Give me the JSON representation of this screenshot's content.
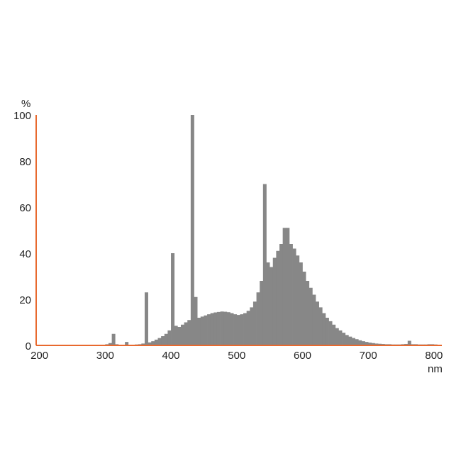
{
  "chart_data": {
    "type": "bar",
    "ylabel": "%",
    "xlabel": "nm",
    "x_ticks": [
      "200",
      "300",
      "400",
      "500",
      "600",
      "700",
      "800"
    ],
    "y_ticks": [
      "0",
      "20",
      "40",
      "60",
      "80",
      "100"
    ],
    "xlim": [
      195,
      812
    ],
    "ylim": [
      0,
      100
    ],
    "grid": false,
    "bin_width_nm": 5,
    "bar_color": "#878787",
    "axis_color": "#e8692e",
    "bins": [
      [
        300,
        0.5
      ],
      [
        305,
        1
      ],
      [
        310,
        5
      ],
      [
        315,
        0.5
      ],
      [
        320,
        0.3
      ],
      [
        325,
        0.3
      ],
      [
        330,
        1.5
      ],
      [
        335,
        0.3
      ],
      [
        340,
        0.3
      ],
      [
        345,
        0.4
      ],
      [
        350,
        0.5
      ],
      [
        355,
        0.8
      ],
      [
        360,
        23
      ],
      [
        365,
        1.3
      ],
      [
        370,
        1.8
      ],
      [
        375,
        2.5
      ],
      [
        380,
        3.2
      ],
      [
        385,
        4
      ],
      [
        390,
        5
      ],
      [
        395,
        6.5
      ],
      [
        400,
        40
      ],
      [
        405,
        8.5
      ],
      [
        410,
        8
      ],
      [
        415,
        9
      ],
      [
        420,
        10
      ],
      [
        425,
        11
      ],
      [
        430,
        100
      ],
      [
        435,
        21
      ],
      [
        440,
        12
      ],
      [
        445,
        12.5
      ],
      [
        450,
        13
      ],
      [
        455,
        13.5
      ],
      [
        460,
        14
      ],
      [
        465,
        14.3
      ],
      [
        470,
        14.5
      ],
      [
        475,
        14.7
      ],
      [
        480,
        14.6
      ],
      [
        485,
        14.4
      ],
      [
        490,
        14
      ],
      [
        495,
        13.5
      ],
      [
        500,
        13.2
      ],
      [
        505,
        13.5
      ],
      [
        510,
        14
      ],
      [
        515,
        15
      ],
      [
        520,
        16.5
      ],
      [
        525,
        19
      ],
      [
        530,
        23
      ],
      [
        535,
        28
      ],
      [
        540,
        70
      ],
      [
        545,
        36
      ],
      [
        550,
        34
      ],
      [
        555,
        38
      ],
      [
        560,
        41
      ],
      [
        565,
        44
      ],
      [
        570,
        51
      ],
      [
        575,
        51
      ],
      [
        580,
        44
      ],
      [
        585,
        42
      ],
      [
        590,
        39
      ],
      [
        595,
        36
      ],
      [
        600,
        32
      ],
      [
        605,
        28
      ],
      [
        610,
        25
      ],
      [
        615,
        22
      ],
      [
        620,
        19
      ],
      [
        625,
        16.5
      ],
      [
        630,
        14
      ],
      [
        635,
        12
      ],
      [
        640,
        10.5
      ],
      [
        645,
        9
      ],
      [
        650,
        7.5
      ],
      [
        655,
        6.5
      ],
      [
        660,
        5.5
      ],
      [
        665,
        4.5
      ],
      [
        670,
        3.8
      ],
      [
        675,
        3.2
      ],
      [
        680,
        2.7
      ],
      [
        685,
        2.2
      ],
      [
        690,
        1.8
      ],
      [
        695,
        1.5
      ],
      [
        700,
        1.2
      ],
      [
        705,
        1
      ],
      [
        710,
        0.8
      ],
      [
        715,
        0.7
      ],
      [
        720,
        0.6
      ],
      [
        725,
        0.5
      ],
      [
        730,
        0.5
      ],
      [
        735,
        0.4
      ],
      [
        740,
        0.4
      ],
      [
        745,
        0.4
      ],
      [
        750,
        0.5
      ],
      [
        755,
        0.6
      ],
      [
        760,
        2
      ],
      [
        765,
        0.5
      ],
      [
        770,
        0.5
      ],
      [
        775,
        0.4
      ],
      [
        780,
        0.4
      ],
      [
        785,
        0.4
      ],
      [
        790,
        0.5
      ],
      [
        795,
        0.5
      ],
      [
        800,
        0.4
      ],
      [
        805,
        0.3
      ]
    ]
  }
}
